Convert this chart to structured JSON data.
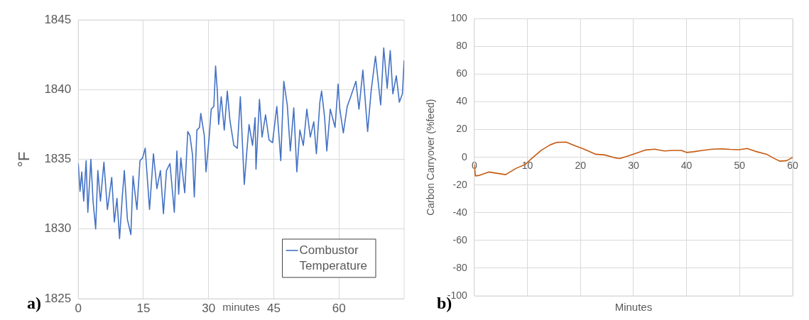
{
  "chart_data": [
    {
      "type": "line",
      "xlabel": "minutes",
      "ylabel": "°F",
      "xlim": [
        0,
        75
      ],
      "xticks": [
        0,
        15,
        30,
        45,
        60
      ],
      "ylim": [
        1825,
        1845
      ],
      "yticks": [
        1825,
        1830,
        1835,
        1840,
        1845
      ],
      "grid": true,
      "legend": "bottom right",
      "marker": "none",
      "annotations": [
        "a)"
      ],
      "series": [
        {
          "name": "Combustor Temperature",
          "color": "#4472c4",
          "x": [
            0,
            0.4,
            0.8,
            1.25,
            1.8,
            2.2,
            2.9,
            3.4,
            4.0,
            4.5,
            5.1,
            5.9,
            6.7,
            7.7,
            8.3,
            8.9,
            9.5,
            10.1,
            10.6,
            11.3,
            12.1,
            12.6,
            13.5,
            14.2,
            14.8,
            15.4,
            16.4,
            17.3,
            18.1,
            18.9,
            19.6,
            20.3,
            21.1,
            22.1,
            22.7,
            23.1,
            23.6,
            24.5,
            25.2,
            25.7,
            26.3,
            26.7,
            27.3,
            27.9,
            28.2,
            29.0,
            29.4,
            30.1,
            30.6,
            31.2,
            31.6,
            32.0,
            32.3,
            32.9,
            33.6,
            34.3,
            34.9,
            35.8,
            36.6,
            37.3,
            38.2,
            38.8,
            39.3,
            40.1,
            40.7,
            40.9,
            41.7,
            42.3,
            43.1,
            43.9,
            44.7,
            45.7,
            46.6,
            47.3,
            48.1,
            48.8,
            49.6,
            50.3,
            51.0,
            51.8,
            52.6,
            53.4,
            54.2,
            54.8,
            55.6,
            56.0,
            56.7,
            57.2,
            58.0,
            59.1,
            59.8,
            60.2,
            61.0,
            61.9,
            62.7,
            63.9,
            64.6,
            65.5,
            66.6,
            67.4,
            68.4,
            69.6,
            70.3,
            71.1,
            71.8,
            72.4,
            73.2,
            73.9,
            74.6,
            75.0
          ],
          "values": [
            1834.7,
            1832.7,
            1834.1,
            1832.0,
            1834.9,
            1831.2,
            1835.0,
            1832.0,
            1830.0,
            1834.2,
            1832.0,
            1834.8,
            1831.4,
            1833.7,
            1830.5,
            1832.2,
            1829.3,
            1832.2,
            1834.2,
            1830.7,
            1829.6,
            1833.8,
            1831.4,
            1834.9,
            1835.1,
            1835.8,
            1831.4,
            1835.4,
            1832.9,
            1834.2,
            1831.1,
            1834.2,
            1834.7,
            1831.2,
            1835.6,
            1832.5,
            1835.1,
            1832.6,
            1837.0,
            1836.7,
            1835.3,
            1832.3,
            1837.1,
            1837.3,
            1838.3,
            1836.7,
            1834.1,
            1836.5,
            1838.6,
            1838.8,
            1841.7,
            1839.9,
            1837.5,
            1839.5,
            1837.1,
            1839.9,
            1837.8,
            1836.0,
            1835.8,
            1839.5,
            1833.2,
            1835.6,
            1837.5,
            1836.0,
            1838.0,
            1834.3,
            1839.3,
            1836.6,
            1838.2,
            1836.4,
            1836.2,
            1838.8,
            1834.9,
            1840.6,
            1838.9,
            1835.6,
            1838.7,
            1834.1,
            1837.1,
            1836.0,
            1838.6,
            1836.6,
            1837.7,
            1835.4,
            1839.1,
            1839.9,
            1838.0,
            1835.6,
            1838.6,
            1837.3,
            1840.4,
            1838.6,
            1836.9,
            1838.8,
            1839.5,
            1840.6,
            1838.6,
            1841.4,
            1837.0,
            1839.9,
            1842.4,
            1838.9,
            1843.0,
            1840.1,
            1842.8,
            1839.7,
            1841.0,
            1839.1,
            1839.7,
            1842.1
          ]
        }
      ]
    },
    {
      "type": "line",
      "xlabel": "Minutes",
      "ylabel": "Carbon Carryover (%feed)",
      "xlim": [
        0,
        60
      ],
      "xticks": [
        0,
        10,
        20,
        30,
        40,
        50,
        60
      ],
      "ylim": [
        -100,
        100
      ],
      "yticks": [
        -100,
        -80,
        -60,
        -40,
        -20,
        0,
        20,
        40,
        60,
        80,
        100
      ],
      "grid": true,
      "marker": "none",
      "annotations": [
        "b)"
      ],
      "series": [
        {
          "color": "#c55a11",
          "x": [
            0,
            0.2,
            1,
            2.7,
            4.4,
            5.9,
            7.9,
            9.6,
            10.9,
            12.6,
            14.3,
            15.6,
            17.3,
            19,
            20.7,
            22.9,
            24.6,
            26.3,
            27.4,
            28.9,
            30.6,
            32.3,
            34,
            35.8,
            37.5,
            39,
            40,
            41.3,
            43,
            44.8,
            46.5,
            48.2,
            49.9,
            51.4,
            52.9,
            55.1,
            56.4,
            57.6,
            58.9,
            60
          ],
          "values": [
            -5.1,
            -13.4,
            -13,
            -10.6,
            -11.6,
            -12.5,
            -7.9,
            -5.1,
            -0.6,
            5,
            9,
            10.8,
            11,
            8.3,
            5.9,
            2.2,
            1.7,
            -0.2,
            -0.9,
            0.9,
            3.1,
            5.3,
            5.9,
            4.6,
            5,
            5,
            3.5,
            4,
            5,
            5.9,
            6.1,
            5.7,
            5.5,
            6.4,
            4.4,
            2.2,
            -0.6,
            -2.8,
            -2.4,
            0
          ]
        }
      ]
    }
  ]
}
